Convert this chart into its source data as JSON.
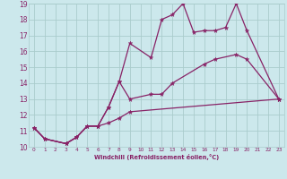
{
  "xlabel": "Windchill (Refroidissement éolien,°C)",
  "xlim": [
    -0.5,
    23.5
  ],
  "ylim": [
    10,
    19
  ],
  "xticks": [
    0,
    1,
    2,
    3,
    4,
    5,
    6,
    7,
    8,
    9,
    10,
    11,
    12,
    13,
    14,
    15,
    16,
    17,
    18,
    19,
    20,
    21,
    22,
    23
  ],
  "yticks": [
    10,
    11,
    12,
    13,
    14,
    15,
    16,
    17,
    18,
    19
  ],
  "bg_color": "#cce8ec",
  "grid_color": "#aacccc",
  "line_color": "#882266",
  "line_width": 0.9,
  "marker": "*",
  "marker_size": 3.5,
  "series": [
    {
      "x": [
        0,
        1,
        3,
        4,
        5,
        6,
        7,
        8,
        9,
        23
      ],
      "y": [
        11.2,
        10.5,
        10.2,
        10.6,
        11.3,
        11.3,
        11.5,
        11.8,
        12.2,
        13.0
      ]
    },
    {
      "x": [
        0,
        1,
        3,
        4,
        5,
        6,
        7,
        8,
        9,
        11,
        12,
        13,
        16,
        17,
        19,
        20,
        23
      ],
      "y": [
        11.2,
        10.5,
        10.2,
        10.6,
        11.3,
        11.3,
        12.5,
        14.1,
        13.0,
        13.3,
        13.3,
        14.0,
        15.2,
        15.5,
        15.8,
        15.5,
        13.0
      ]
    },
    {
      "x": [
        0,
        1,
        3,
        4,
        5,
        6,
        7,
        8,
        9,
        11,
        12,
        13,
        14,
        15,
        16,
        17,
        18,
        19,
        20,
        23
      ],
      "y": [
        11.2,
        10.5,
        10.2,
        10.6,
        11.3,
        11.3,
        12.5,
        14.1,
        16.5,
        15.6,
        18.0,
        18.3,
        19.0,
        17.2,
        17.3,
        17.3,
        17.5,
        19.0,
        17.3,
        13.0
      ]
    }
  ]
}
